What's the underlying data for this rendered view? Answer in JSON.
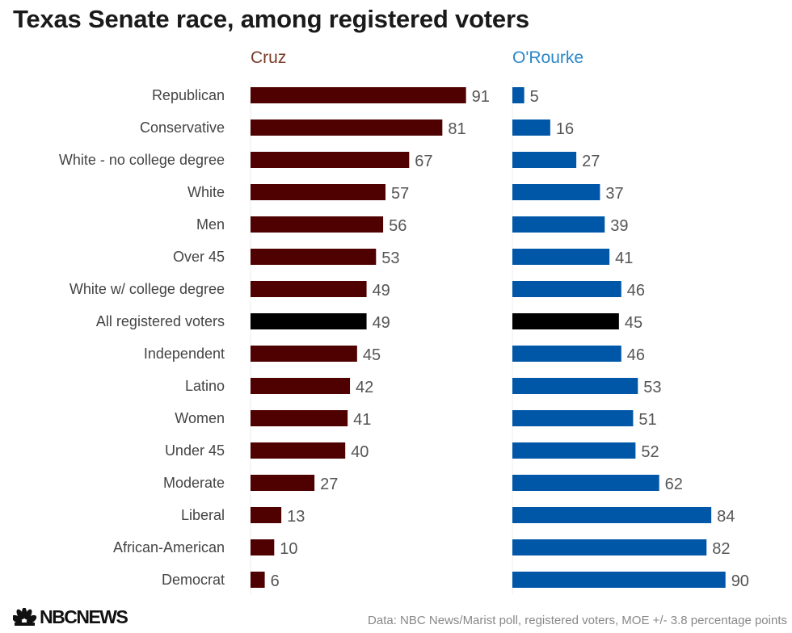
{
  "chart_data": {
    "type": "bar",
    "orientation": "horizontal",
    "title": "Texas Senate race, among registered voters",
    "categories": [
      "Republican",
      "Conservative",
      "White - no college degree",
      "White",
      "Men",
      "Over 45",
      "White w/ college degree",
      "All registered voters",
      "Independent",
      "Latino",
      "Women",
      "Under 45",
      "Moderate",
      "Liberal",
      "African-American",
      "Democrat"
    ],
    "highlight_category": "All registered voters",
    "series": [
      {
        "name": "Cruz",
        "color": "#4f0000",
        "label_color": "#7a3a28",
        "values": [
          91,
          81,
          67,
          57,
          56,
          53,
          49,
          49,
          45,
          42,
          41,
          40,
          27,
          13,
          10,
          6
        ]
      },
      {
        "name": "O'Rourke",
        "color": "#0057a8",
        "label_color": "#2a86c8",
        "values": [
          5,
          16,
          27,
          37,
          39,
          41,
          46,
          45,
          46,
          53,
          51,
          52,
          62,
          84,
          82,
          90
        ]
      }
    ],
    "highlight_color": "#000000",
    "xlim": [
      0,
      100
    ],
    "grid": false,
    "legend": "top, as column headers"
  },
  "footer": {
    "source": "Data: NBC News/Marist poll, registered voters, MOE +/- 3.8 percentage points",
    "logo_text": "NBCNEWS"
  }
}
